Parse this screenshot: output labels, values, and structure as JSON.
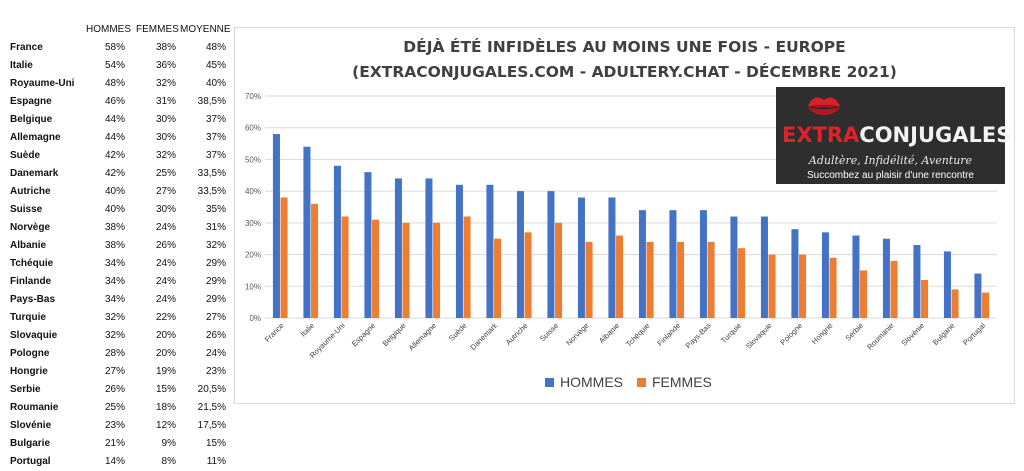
{
  "table": {
    "headers": [
      "HOMMES",
      "FEMMES",
      "MOYENNE"
    ],
    "rows": [
      {
        "country": "France",
        "hommes": "58%",
        "femmes": "38%",
        "moyenne": "48%"
      },
      {
        "country": "Italie",
        "hommes": "54%",
        "femmes": "36%",
        "moyenne": "45%"
      },
      {
        "country": "Royaume-Uni",
        "hommes": "48%",
        "femmes": "32%",
        "moyenne": "40%"
      },
      {
        "country": "Espagne",
        "hommes": "46%",
        "femmes": "31%",
        "moyenne": "38,5%"
      },
      {
        "country": "Belgique",
        "hommes": "44%",
        "femmes": "30%",
        "moyenne": "37%"
      },
      {
        "country": "Allemagne",
        "hommes": "44%",
        "femmes": "30%",
        "moyenne": "37%"
      },
      {
        "country": "Suède",
        "hommes": "42%",
        "femmes": "32%",
        "moyenne": "37%"
      },
      {
        "country": "Danemark",
        "hommes": "42%",
        "femmes": "25%",
        "moyenne": "33,5%"
      },
      {
        "country": "Autriche",
        "hommes": "40%",
        "femmes": "27%",
        "moyenne": "33,5%"
      },
      {
        "country": "Suisse",
        "hommes": "40%",
        "femmes": "30%",
        "moyenne": "35%"
      },
      {
        "country": "Norvège",
        "hommes": "38%",
        "femmes": "24%",
        "moyenne": "31%"
      },
      {
        "country": "Albanie",
        "hommes": "38%",
        "femmes": "26%",
        "moyenne": "32%"
      },
      {
        "country": "Tchéquie",
        "hommes": "34%",
        "femmes": "24%",
        "moyenne": "29%"
      },
      {
        "country": "Finlande",
        "hommes": "34%",
        "femmes": "24%",
        "moyenne": "29%"
      },
      {
        "country": "Pays-Bas",
        "hommes": "34%",
        "femmes": "24%",
        "moyenne": "29%"
      },
      {
        "country": "Turquie",
        "hommes": "32%",
        "femmes": "22%",
        "moyenne": "27%"
      },
      {
        "country": "Slovaquie",
        "hommes": "32%",
        "femmes": "20%",
        "moyenne": "26%"
      },
      {
        "country": "Pologne",
        "hommes": "28%",
        "femmes": "20%",
        "moyenne": "24%"
      },
      {
        "country": "Hongrie",
        "hommes": "27%",
        "femmes": "19%",
        "moyenne": "23%"
      },
      {
        "country": "Serbie",
        "hommes": "26%",
        "femmes": "15%",
        "moyenne": "20,5%"
      },
      {
        "country": "Roumanie",
        "hommes": "25%",
        "femmes": "18%",
        "moyenne": "21,5%"
      },
      {
        "country": "Slovénie",
        "hommes": "23%",
        "femmes": "12%",
        "moyenne": "17,5%"
      },
      {
        "country": "Bulgarie",
        "hommes": "21%",
        "femmes": "9%",
        "moyenne": "15%"
      },
      {
        "country": "Portugal",
        "hommes": "14%",
        "femmes": "8%",
        "moyenne": "11%"
      }
    ]
  },
  "chart_data": {
    "type": "bar",
    "title": "DÉJÀ ÉTÉ  INFIDÈLES AU MOINS UNE FOIS  - EUROPE",
    "subtitle": "(EXTRACONJUGALES.COM - ADULTERY.CHAT - DÉCEMBRE 2021)",
    "categories": [
      "France",
      "Italie",
      "Royaume-Uni",
      "Espagne",
      "Belgique",
      "Allemagne",
      "Suède",
      "Danemark",
      "Autriche",
      "Suisse",
      "Norvège",
      "Albanie",
      "Tchéquie",
      "Finlande",
      "Pays-Bas",
      "Turquie",
      "Slovaquie",
      "Pologne",
      "Hongrie",
      "Serbie",
      "Roumanie",
      "Slovénie",
      "Bulgarie",
      "Portugal"
    ],
    "series": [
      {
        "name": "HOMMES",
        "color": "#4472c4",
        "values": [
          58,
          54,
          48,
          46,
          44,
          44,
          42,
          42,
          40,
          40,
          38,
          38,
          34,
          34,
          34,
          32,
          32,
          28,
          27,
          26,
          25,
          23,
          21,
          14
        ]
      },
      {
        "name": "FEMMES",
        "color": "#ed7d31",
        "values": [
          38,
          36,
          32,
          31,
          30,
          30,
          32,
          25,
          27,
          30,
          24,
          26,
          24,
          24,
          24,
          22,
          20,
          20,
          19,
          15,
          18,
          12,
          9,
          8
        ]
      }
    ],
    "ylim": [
      0,
      70
    ],
    "yticks": [
      0,
      10,
      20,
      30,
      40,
      50,
      60,
      70
    ],
    "ytick_labels": [
      "0%",
      "10%",
      "20%",
      "30%",
      "40%",
      "50%",
      "60%",
      "70%"
    ],
    "grid": true,
    "legend_position": "bottom",
    "xlabel": "",
    "ylabel": ""
  },
  "logo": {
    "word_part1": "EXTRA",
    "word_part2": "CONJUGALES",
    "tagline": "Adultère, Infidélité, Aventure",
    "tagline2": "Succombez au plaisir d'une rencontre",
    "colors": {
      "background": "#2e2e2e",
      "accent": "#e0222c"
    }
  },
  "colors": {
    "hommes": "#4472c4",
    "femmes": "#ed7d31",
    "grid": "#d9d9d9",
    "title": "#404040"
  }
}
